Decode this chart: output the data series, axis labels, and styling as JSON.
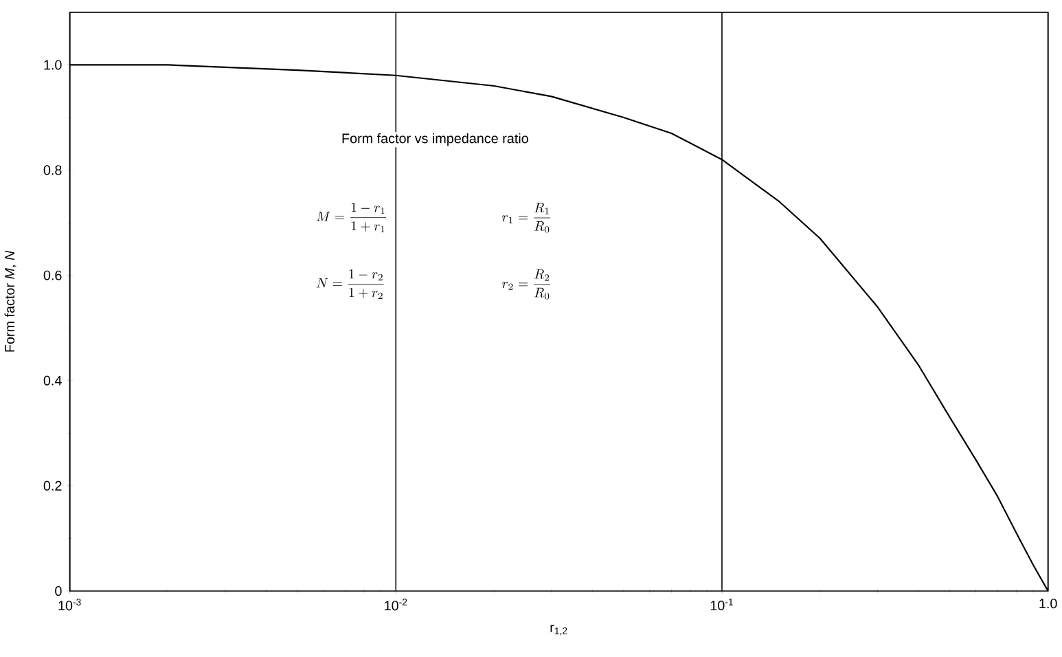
{
  "chart_data": {
    "type": "line",
    "xlabel": "r$_{1,2}$",
    "ylabel": "Form factor *M*, *N*",
    "annotations": [
      "Form factor vs impedance ratio",
      "M = \\frac{1 - r_1}{1 + r_1}",
      "r_1 = \\frac{R_1}{R_0}",
      "N = \\frac{1 - r_2}{1 + r_2}",
      "r_2 = \\frac{R_2}{R_0}"
    ],
    "x": [
      0.001,
      0.002,
      0.005,
      0.01,
      0.02,
      0.03,
      0.05,
      0.07,
      0.1,
      0.15,
      0.2,
      0.3,
      0.4,
      0.5,
      0.6,
      0.7,
      0.8,
      0.9,
      1.0
    ],
    "series": [
      {
        "color": "#000000",
        "values": [
          1.0,
          1.0,
          0.99,
          0.98,
          0.96,
          0.94,
          0.9,
          0.87,
          0.82,
          0.74,
          0.67,
          0.54,
          0.43,
          0.33,
          0.25,
          0.18,
          0.11,
          0.05,
          0.0
        ]
      }
    ],
    "log": "x",
    "grid": "x",
    "xlim": [
      0.001,
      1.0
    ],
    "ylim": [
      0,
      1.1
    ],
    "xticks": [
      {
        "value": 0.001,
        "label": "10$^{-3}$"
      },
      {
        "value": 0.01,
        "label": "10$^{-2}$"
      },
      {
        "value": 0.1,
        "label": "10$^{-1}$"
      },
      {
        "value": 1.0,
        "label": "1.0"
      }
    ],
    "yticks": [
      0,
      0.2,
      0.4,
      0.6,
      0.8,
      {
        "value": 1.0,
        "label": "1.0"
      }
    ],
    "marker": "none",
    "line_style": "solid"
  }
}
